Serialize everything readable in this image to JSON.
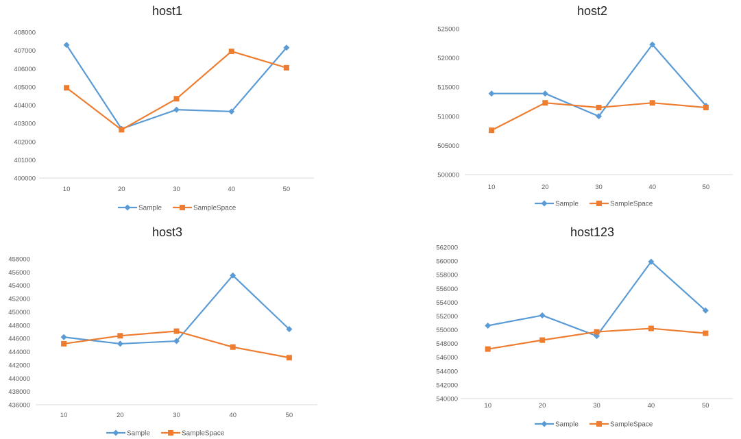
{
  "colors": {
    "sample": "#5b9bd5",
    "samplespace": "#ed7d31",
    "axis": "#d9d9d9",
    "text": "#595959"
  },
  "chart_data": [
    {
      "type": "line",
      "title": "host1",
      "categories": [
        "10",
        "20",
        "30",
        "40",
        "50"
      ],
      "ylim": [
        400000,
        408000
      ],
      "yticks": [
        "400000",
        "401000",
        "402000",
        "403000",
        "404000",
        "405000",
        "406000",
        "407000",
        "408000"
      ],
      "series": [
        {
          "name": "Sample",
          "color": "#5b9bd5",
          "marker": "diamond",
          "values": [
            407300,
            402700,
            403750,
            403650,
            407150
          ]
        },
        {
          "name": "SampleSpace",
          "color": "#ed7d31",
          "marker": "square",
          "values": [
            404950,
            402650,
            404350,
            406950,
            406050
          ]
        }
      ],
      "legend": "bottom"
    },
    {
      "type": "line",
      "title": "host2",
      "categories": [
        "10",
        "20",
        "30",
        "40",
        "50"
      ],
      "ylim": [
        500000,
        525000
      ],
      "yticks": [
        "500000",
        "505000",
        "510000",
        "515000",
        "520000",
        "525000"
      ],
      "series": [
        {
          "name": "Sample",
          "color": "#5b9bd5",
          "marker": "diamond",
          "values": [
            513900,
            513900,
            510000,
            522300,
            511800
          ]
        },
        {
          "name": "SampleSpace",
          "color": "#ed7d31",
          "marker": "square",
          "values": [
            507600,
            512300,
            511500,
            512300,
            511500
          ]
        }
      ],
      "legend": "bottom"
    },
    {
      "type": "line",
      "title": "host3",
      "categories": [
        "10",
        "20",
        "30",
        "40",
        "50"
      ],
      "ylim": [
        436000,
        458000
      ],
      "yticks": [
        "436000",
        "438000",
        "440000",
        "442000",
        "444000",
        "446000",
        "448000",
        "450000",
        "452000",
        "454000",
        "456000",
        "458000"
      ],
      "series": [
        {
          "name": "Sample",
          "color": "#5b9bd5",
          "marker": "diamond",
          "values": [
            446200,
            445200,
            445600,
            455500,
            447400
          ]
        },
        {
          "name": "SampleSpace",
          "color": "#ed7d31",
          "marker": "square",
          "values": [
            445200,
            446400,
            447100,
            444700,
            443100
          ]
        }
      ],
      "legend": "bottom"
    },
    {
      "type": "line",
      "title": "host123",
      "categories": [
        "10",
        "20",
        "30",
        "40",
        "50"
      ],
      "ylim": [
        540000,
        562000
      ],
      "yticks": [
        "540000",
        "542000",
        "544000",
        "546000",
        "548000",
        "550000",
        "552000",
        "554000",
        "556000",
        "558000",
        "560000",
        "562000"
      ],
      "series": [
        {
          "name": "Sample",
          "color": "#5b9bd5",
          "marker": "diamond",
          "values": [
            550600,
            552100,
            549100,
            559900,
            552800
          ]
        },
        {
          "name": "SampleSpace",
          "color": "#ed7d31",
          "marker": "square",
          "values": [
            547200,
            548500,
            549700,
            550200,
            549500
          ]
        }
      ],
      "legend": "bottom"
    }
  ]
}
